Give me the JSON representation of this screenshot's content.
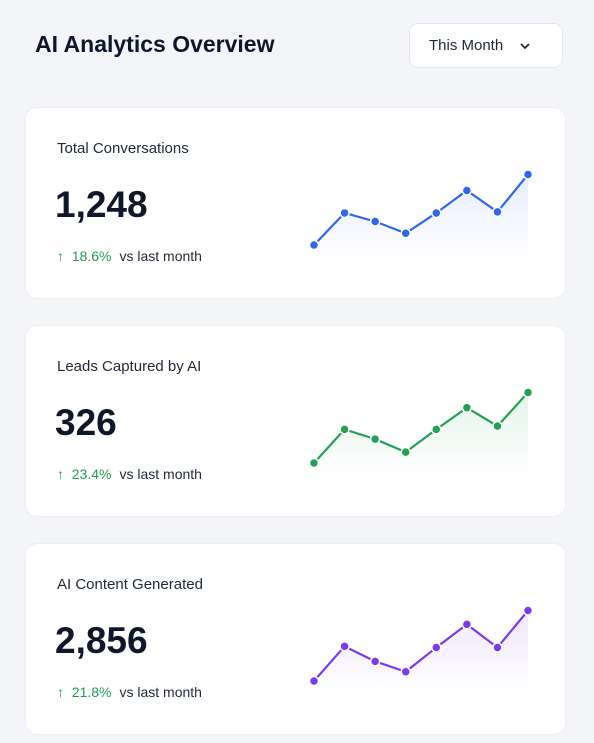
{
  "header": {
    "title": "AI Analytics Overview",
    "period": "This Month"
  },
  "cards": [
    {
      "title": "Total Conversations",
      "value": "1,248",
      "change": "18.6%",
      "comparison": "vs last month",
      "color": "#2f66ee",
      "sparkline": [
        12,
        42,
        34,
        23,
        42,
        63,
        43,
        78
      ]
    },
    {
      "title": "Leads Captured by AI",
      "value": "326",
      "change": "23.4%",
      "comparison": "vs last month",
      "color": "#23a056",
      "sparkline": [
        14,
        45,
        36,
        24,
        45,
        65,
        48,
        79
      ]
    },
    {
      "title": "AI Content Generated",
      "value": "2,856",
      "change": "21.8%",
      "comparison": "vs last month",
      "color": "#7c3aed",
      "sparkline": [
        12,
        42,
        29,
        20,
        41,
        61,
        41,
        73
      ]
    }
  ]
}
